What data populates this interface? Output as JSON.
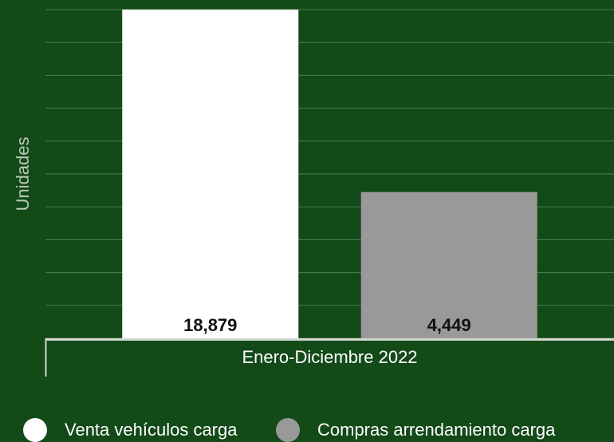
{
  "chart_data": {
    "type": "bar",
    "y_label": "Unidades",
    "categories": [
      "Enero-Diciembre 2022"
    ],
    "series": [
      {
        "name": "Venta vehículos carga",
        "color": "#ffffff",
        "values": [
          18879
        ],
        "value_labels": [
          "18,879"
        ]
      },
      {
        "name": "Compras arrendamiento carga",
        "color": "#999999",
        "values": [
          4449
        ],
        "value_labels": [
          "4,449"
        ]
      }
    ],
    "ylim": [
      0,
      10000
    ],
    "yticks": [
      0,
      1000,
      2000,
      3000,
      4000,
      5000,
      6000,
      7000,
      8000,
      9000,
      10000
    ],
    "grid": true,
    "legend": "bottom"
  }
}
